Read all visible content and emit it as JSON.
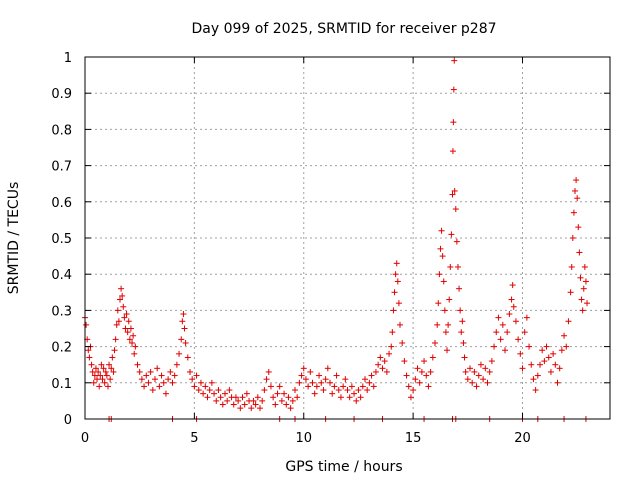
{
  "chart_data": {
    "type": "scatter",
    "title": "Day 099 of 2025, SRMTID for receiver p287",
    "xlabel": "GPS time / hours",
    "ylabel": "SRMTID / TECUs",
    "xlim": [
      0,
      24
    ],
    "ylim": [
      0,
      1
    ],
    "grid": true,
    "marker": "plus",
    "marker_color": "#e00000",
    "x_ticks": [
      {
        "value": 0,
        "label": "0"
      },
      {
        "value": 5,
        "label": "5"
      },
      {
        "value": 10,
        "label": "10"
      },
      {
        "value": 15,
        "label": "15"
      },
      {
        "value": 20,
        "label": "20"
      }
    ],
    "y_ticks": [
      {
        "value": 0,
        "label": "0"
      },
      {
        "value": 0.1,
        "label": "0.1"
      },
      {
        "value": 0.2,
        "label": "0.2"
      },
      {
        "value": 0.3,
        "label": "0.3"
      },
      {
        "value": 0.4,
        "label": "0.4"
      },
      {
        "value": 0.5,
        "label": "0.5"
      },
      {
        "value": 0.6,
        "label": "0.6"
      },
      {
        "value": 0.7,
        "label": "0.7"
      },
      {
        "value": 0.8,
        "label": "0.8"
      },
      {
        "value": 0.9,
        "label": "0.9"
      },
      {
        "value": 1,
        "label": "1"
      }
    ],
    "series": [
      {
        "name": "SRMTID",
        "points": [
          [
            0.0,
            0.28
          ],
          [
            0.05,
            0.26
          ],
          [
            0.1,
            0.22
          ],
          [
            0.15,
            0.19
          ],
          [
            0.2,
            0.17
          ],
          [
            0.25,
            0.2
          ],
          [
            0.3,
            0.15
          ],
          [
            0.35,
            0.13
          ],
          [
            0.4,
            0.1
          ],
          [
            0.45,
            0.12
          ],
          [
            0.5,
            0.14
          ],
          [
            0.55,
            0.11
          ],
          [
            0.6,
            0.13
          ],
          [
            0.65,
            0.09
          ],
          [
            0.7,
            0.12
          ],
          [
            0.75,
            0.15
          ],
          [
            0.8,
            0.11
          ],
          [
            0.85,
            0.14
          ],
          [
            0.9,
            0.1
          ],
          [
            0.95,
            0.13
          ],
          [
            1.0,
            0.12
          ],
          [
            1.05,
            0.09
          ],
          [
            1.1,
            0.15
          ],
          [
            1.15,
            0.11
          ],
          [
            1.2,
            0.14
          ],
          [
            1.25,
            0.17
          ],
          [
            1.3,
            0.13
          ],
          [
            1.35,
            0.19
          ],
          [
            1.4,
            0.22
          ],
          [
            1.45,
            0.26
          ],
          [
            1.5,
            0.3
          ],
          [
            1.55,
            0.27
          ],
          [
            1.6,
            0.33
          ],
          [
            1.65,
            0.36
          ],
          [
            1.7,
            0.34
          ],
          [
            1.75,
            0.31
          ],
          [
            1.8,
            0.28
          ],
          [
            1.85,
            0.25
          ],
          [
            1.9,
            0.29
          ],
          [
            1.95,
            0.24
          ],
          [
            2.0,
            0.27
          ],
          [
            2.05,
            0.22
          ],
          [
            2.1,
            0.25
          ],
          [
            2.15,
            0.21
          ],
          [
            2.2,
            0.23
          ],
          [
            2.25,
            0.18
          ],
          [
            2.3,
            0.2
          ],
          [
            2.4,
            0.15
          ],
          [
            2.5,
            0.13
          ],
          [
            2.6,
            0.11
          ],
          [
            2.7,
            0.09
          ],
          [
            2.8,
            0.12
          ],
          [
            2.9,
            0.1
          ],
          [
            3.0,
            0.13
          ],
          [
            3.1,
            0.08
          ],
          [
            3.2,
            0.11
          ],
          [
            3.3,
            0.14
          ],
          [
            3.4,
            0.09
          ],
          [
            3.5,
            0.12
          ],
          [
            3.6,
            0.1
          ],
          [
            3.7,
            0.07
          ],
          [
            3.8,
            0.11
          ],
          [
            3.9,
            0.13
          ],
          [
            4.0,
            0.1
          ],
          [
            4.1,
            0.12
          ],
          [
            4.2,
            0.15
          ],
          [
            4.3,
            0.18
          ],
          [
            4.4,
            0.22
          ],
          [
            4.45,
            0.27
          ],
          [
            4.5,
            0.29
          ],
          [
            4.55,
            0.25
          ],
          [
            4.6,
            0.21
          ],
          [
            4.7,
            0.17
          ],
          [
            4.8,
            0.13
          ],
          [
            4.9,
            0.11
          ],
          [
            5.0,
            0.09
          ],
          [
            5.1,
            0.12
          ],
          [
            5.2,
            0.08
          ],
          [
            5.3,
            0.1
          ],
          [
            5.4,
            0.07
          ],
          [
            5.5,
            0.09
          ],
          [
            5.6,
            0.06
          ],
          [
            5.7,
            0.08
          ],
          [
            5.8,
            0.1
          ],
          [
            5.9,
            0.07
          ],
          [
            6.0,
            0.05
          ],
          [
            6.1,
            0.08
          ],
          [
            6.2,
            0.06
          ],
          [
            6.3,
            0.04
          ],
          [
            6.4,
            0.07
          ],
          [
            6.5,
            0.05
          ],
          [
            6.6,
            0.08
          ],
          [
            6.7,
            0.06
          ],
          [
            6.8,
            0.04
          ],
          [
            6.9,
            0.06
          ],
          [
            7.0,
            0.05
          ],
          [
            7.1,
            0.03
          ],
          [
            7.2,
            0.06
          ],
          [
            7.3,
            0.04
          ],
          [
            7.4,
            0.07
          ],
          [
            7.5,
            0.05
          ],
          [
            7.6,
            0.03
          ],
          [
            7.7,
            0.05
          ],
          [
            7.8,
            0.04
          ],
          [
            7.9,
            0.06
          ],
          [
            8.0,
            0.03
          ],
          [
            8.1,
            0.05
          ],
          [
            8.2,
            0.08
          ],
          [
            8.3,
            0.11
          ],
          [
            8.4,
            0.13
          ],
          [
            8.5,
            0.09
          ],
          [
            8.6,
            0.06
          ],
          [
            8.7,
            0.04
          ],
          [
            8.8,
            0.07
          ],
          [
            8.9,
            0.09
          ],
          [
            9.0,
            0.05
          ],
          [
            9.1,
            0.07
          ],
          [
            9.2,
            0.04
          ],
          [
            9.3,
            0.06
          ],
          [
            9.4,
            0.03
          ],
          [
            9.5,
            0.05
          ],
          [
            9.6,
            0.08
          ],
          [
            9.7,
            0.06
          ],
          [
            9.8,
            0.1
          ],
          [
            9.9,
            0.12
          ],
          [
            10.0,
            0.14
          ],
          [
            10.1,
            0.11
          ],
          [
            10.2,
            0.09
          ],
          [
            10.3,
            0.13
          ],
          [
            10.4,
            0.1
          ],
          [
            10.5,
            0.07
          ],
          [
            10.6,
            0.09
          ],
          [
            10.7,
            0.12
          ],
          [
            10.8,
            0.1
          ],
          [
            10.9,
            0.08
          ],
          [
            11.0,
            0.11
          ],
          [
            11.1,
            0.14
          ],
          [
            11.2,
            0.1
          ],
          [
            11.3,
            0.07
          ],
          [
            11.4,
            0.09
          ],
          [
            11.5,
            0.12
          ],
          [
            11.6,
            0.08
          ],
          [
            11.7,
            0.06
          ],
          [
            11.8,
            0.09
          ],
          [
            11.9,
            0.11
          ],
          [
            12.0,
            0.08
          ],
          [
            12.1,
            0.06
          ],
          [
            12.2,
            0.09
          ],
          [
            12.3,
            0.07
          ],
          [
            12.4,
            0.05
          ],
          [
            12.5,
            0.08
          ],
          [
            12.6,
            0.06
          ],
          [
            12.7,
            0.09
          ],
          [
            12.8,
            0.11
          ],
          [
            12.9,
            0.08
          ],
          [
            13.0,
            0.1
          ],
          [
            13.1,
            0.12
          ],
          [
            13.2,
            0.09
          ],
          [
            13.3,
            0.13
          ],
          [
            13.4,
            0.15
          ],
          [
            13.5,
            0.17
          ],
          [
            13.6,
            0.14
          ],
          [
            13.7,
            0.16
          ],
          [
            13.8,
            0.13
          ],
          [
            13.9,
            0.18
          ],
          [
            14.0,
            0.2
          ],
          [
            14.05,
            0.24
          ],
          [
            14.1,
            0.3
          ],
          [
            14.15,
            0.35
          ],
          [
            14.2,
            0.4
          ],
          [
            14.25,
            0.43
          ],
          [
            14.3,
            0.38
          ],
          [
            14.35,
            0.32
          ],
          [
            14.4,
            0.26
          ],
          [
            14.5,
            0.21
          ],
          [
            14.6,
            0.16
          ],
          [
            14.7,
            0.12
          ],
          [
            14.8,
            0.09
          ],
          [
            14.9,
            0.06
          ],
          [
            15.0,
            0.08
          ],
          [
            15.1,
            0.11
          ],
          [
            15.2,
            0.14
          ],
          [
            15.3,
            0.1
          ],
          [
            15.4,
            0.13
          ],
          [
            15.5,
            0.16
          ],
          [
            15.6,
            0.12
          ],
          [
            15.7,
            0.09
          ],
          [
            15.8,
            0.13
          ],
          [
            15.9,
            0.17
          ],
          [
            16.0,
            0.21
          ],
          [
            16.1,
            0.26
          ],
          [
            16.15,
            0.32
          ],
          [
            16.2,
            0.4
          ],
          [
            16.25,
            0.47
          ],
          [
            16.3,
            0.52
          ],
          [
            16.35,
            0.45
          ],
          [
            16.4,
            0.38
          ],
          [
            16.45,
            0.3
          ],
          [
            16.5,
            0.24
          ],
          [
            16.55,
            0.19
          ],
          [
            16.6,
            0.26
          ],
          [
            16.65,
            0.33
          ],
          [
            16.7,
            0.42
          ],
          [
            16.75,
            0.51
          ],
          [
            16.8,
            0.62
          ],
          [
            16.82,
            0.74
          ],
          [
            16.84,
            0.82
          ],
          [
            16.86,
            0.91
          ],
          [
            16.88,
            0.99
          ],
          [
            16.9,
            0.63
          ],
          [
            16.95,
            0.58
          ],
          [
            17.0,
            0.49
          ],
          [
            17.05,
            0.42
          ],
          [
            17.1,
            0.36
          ],
          [
            17.15,
            0.3
          ],
          [
            17.2,
            0.24
          ],
          [
            17.25,
            0.27
          ],
          [
            17.3,
            0.21
          ],
          [
            17.35,
            0.17
          ],
          [
            17.4,
            0.13
          ],
          [
            17.5,
            0.11
          ],
          [
            17.6,
            0.14
          ],
          [
            17.7,
            0.1
          ],
          [
            17.8,
            0.13
          ],
          [
            17.9,
            0.09
          ],
          [
            18.0,
            0.12
          ],
          [
            18.1,
            0.15
          ],
          [
            18.2,
            0.11
          ],
          [
            18.3,
            0.14
          ],
          [
            18.4,
            0.1
          ],
          [
            18.5,
            0.13
          ],
          [
            18.6,
            0.16
          ],
          [
            18.7,
            0.2
          ],
          [
            18.8,
            0.24
          ],
          [
            18.9,
            0.28
          ],
          [
            19.0,
            0.22
          ],
          [
            19.1,
            0.26
          ],
          [
            19.2,
            0.19
          ],
          [
            19.3,
            0.24
          ],
          [
            19.4,
            0.29
          ],
          [
            19.5,
            0.33
          ],
          [
            19.55,
            0.37
          ],
          [
            19.6,
            0.31
          ],
          [
            19.7,
            0.27
          ],
          [
            19.8,
            0.22
          ],
          [
            19.9,
            0.18
          ],
          [
            20.0,
            0.14
          ],
          [
            20.1,
            0.24
          ],
          [
            20.2,
            0.28
          ],
          [
            20.3,
            0.2
          ],
          [
            20.4,
            0.15
          ],
          [
            20.5,
            0.11
          ],
          [
            20.6,
            0.08
          ],
          [
            20.7,
            0.12
          ],
          [
            20.8,
            0.15
          ],
          [
            20.9,
            0.19
          ],
          [
            21.0,
            0.16
          ],
          [
            21.1,
            0.2
          ],
          [
            21.2,
            0.17
          ],
          [
            21.3,
            0.13
          ],
          [
            21.4,
            0.18
          ],
          [
            21.5,
            0.15
          ],
          [
            21.6,
            0.1
          ],
          [
            21.7,
            0.14
          ],
          [
            21.8,
            0.19
          ],
          [
            21.9,
            0.23
          ],
          [
            22.0,
            0.2
          ],
          [
            22.1,
            0.27
          ],
          [
            22.2,
            0.35
          ],
          [
            22.25,
            0.42
          ],
          [
            22.3,
            0.5
          ],
          [
            22.35,
            0.57
          ],
          [
            22.4,
            0.63
          ],
          [
            22.45,
            0.66
          ],
          [
            22.5,
            0.61
          ],
          [
            22.55,
            0.53
          ],
          [
            22.6,
            0.46
          ],
          [
            22.65,
            0.39
          ],
          [
            22.7,
            0.33
          ],
          [
            22.75,
            0.3
          ],
          [
            22.8,
            0.36
          ],
          [
            22.85,
            0.42
          ],
          [
            22.9,
            0.38
          ],
          [
            22.95,
            0.32
          ],
          [
            1.1,
            0.0
          ],
          [
            1.2,
            0.0
          ],
          [
            4.0,
            0.0
          ],
          [
            5.1,
            0.0
          ],
          [
            8.9,
            0.0
          ],
          [
            9.6,
            0.0
          ],
          [
            11.0,
            0.0
          ],
          [
            12.3,
            0.0
          ],
          [
            13.6,
            0.0
          ],
          [
            15.5,
            0.0
          ],
          [
            16.8,
            0.0
          ],
          [
            16.95,
            0.0
          ],
          [
            18.5,
            0.0
          ],
          [
            20.0,
            0.0
          ],
          [
            20.7,
            0.0
          ],
          [
            21.9,
            0.0
          ],
          [
            22.9,
            0.0
          ]
        ]
      }
    ]
  }
}
